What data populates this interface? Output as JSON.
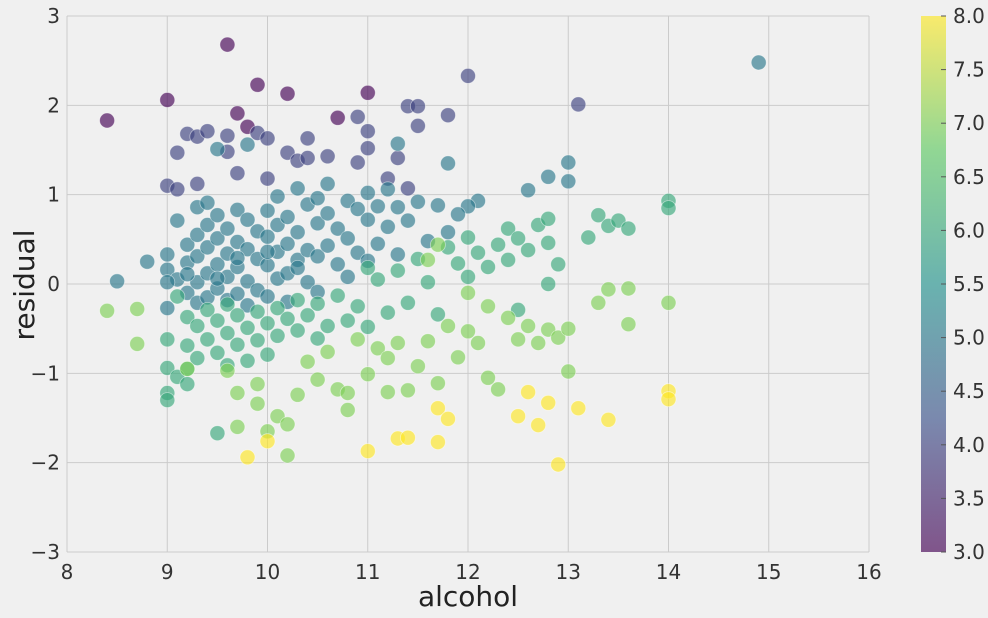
{
  "chart_data": {
    "type": "scatter",
    "title": "",
    "xlabel": "alcohol",
    "ylabel": "residual",
    "xlim": [
      8,
      16
    ],
    "ylim": [
      -3,
      3
    ],
    "xticks": [
      8,
      9,
      10,
      11,
      12,
      13,
      14,
      15,
      16
    ],
    "xtick_labels": [
      "8",
      "9",
      "10",
      "11",
      "12",
      "13",
      "14",
      "15",
      "16"
    ],
    "yticks": [
      -3,
      -2,
      -1,
      0,
      1,
      2,
      3
    ],
    "ytick_labels": [
      "−3",
      "−2",
      "−1",
      "0",
      "1",
      "2",
      "3"
    ],
    "grid": true,
    "colormap": "viridis",
    "color_range": [
      3.0,
      8.0
    ],
    "colorbar_ticks": [
      3.0,
      3.5,
      4.0,
      4.5,
      5.0,
      5.5,
      6.0,
      6.5,
      7.0,
      7.5,
      8.0
    ],
    "colorbar_tick_labels": [
      "3.0",
      "3.5",
      "4.0",
      "4.5",
      "5.0",
      "5.5",
      "6.0",
      "6.5",
      "7.0",
      "7.5",
      "8.0"
    ],
    "point_alpha": 0.65,
    "colors": {
      "background": "#f0f0f0",
      "grid": "#cbcbcb",
      "stops": [
        "#440154",
        "#3b528b",
        "#21918c",
        "#5ec962",
        "#fde725"
      ]
    },
    "points": [
      [
        8.4,
        1.83,
        3
      ],
      [
        9.0,
        2.06,
        3
      ],
      [
        9.6,
        2.68,
        3
      ],
      [
        9.9,
        2.23,
        3
      ],
      [
        10.2,
        2.13,
        3
      ],
      [
        11.0,
        2.14,
        3
      ],
      [
        9.8,
        1.76,
        3
      ],
      [
        9.7,
        1.91,
        3
      ],
      [
        10.7,
        1.86,
        3
      ],
      [
        12.0,
        2.33,
        4
      ],
      [
        13.1,
        2.01,
        4
      ],
      [
        11.4,
        1.99,
        4
      ],
      [
        11.5,
        1.99,
        4
      ],
      [
        11.5,
        1.77,
        4
      ],
      [
        11.8,
        1.89,
        4
      ],
      [
        10.9,
        1.87,
        4
      ],
      [
        11.0,
        1.71,
        4
      ],
      [
        9.2,
        1.68,
        4
      ],
      [
        9.3,
        1.65,
        4
      ],
      [
        9.4,
        1.71,
        4
      ],
      [
        9.6,
        1.66,
        4
      ],
      [
        9.9,
        1.69,
        4
      ],
      [
        10.0,
        1.63,
        4
      ],
      [
        10.4,
        1.63,
        4
      ],
      [
        9.1,
        1.47,
        4
      ],
      [
        9.6,
        1.48,
        4
      ],
      [
        10.2,
        1.47,
        4
      ],
      [
        10.6,
        1.43,
        4
      ],
      [
        11.0,
        1.52,
        4
      ],
      [
        11.3,
        1.41,
        4
      ],
      [
        10.9,
        1.36,
        4
      ],
      [
        9.0,
        1.1,
        4
      ],
      [
        9.1,
        1.06,
        4
      ],
      [
        9.3,
        1.12,
        4
      ],
      [
        9.7,
        1.24,
        4
      ],
      [
        10.0,
        1.18,
        4
      ],
      [
        10.3,
        1.38,
        4
      ],
      [
        10.4,
        1.41,
        4
      ],
      [
        11.4,
        1.07,
        4
      ],
      [
        11.2,
        1.18,
        4
      ],
      [
        14.9,
        2.48,
        5
      ],
      [
        9.5,
        1.51,
        5
      ],
      [
        9.8,
        1.56,
        5
      ],
      [
        11.3,
        1.57,
        5
      ],
      [
        12.6,
        1.05,
        5
      ],
      [
        13.0,
        1.36,
        5
      ],
      [
        12.8,
        1.2,
        5
      ],
      [
        13.0,
        1.15,
        5
      ],
      [
        11.8,
        1.35,
        5
      ],
      [
        12.1,
        0.93,
        5
      ],
      [
        12.0,
        0.87,
        5
      ],
      [
        11.9,
        0.78,
        5
      ],
      [
        8.5,
        0.03,
        5
      ],
      [
        8.8,
        0.25,
        5
      ],
      [
        9.0,
        0.33,
        5
      ],
      [
        9.0,
        0.16,
        5
      ],
      [
        9.0,
        -0.27,
        5
      ],
      [
        9.1,
        0.05,
        5
      ],
      [
        9.1,
        0.71,
        5
      ],
      [
        9.2,
        0.44,
        5
      ],
      [
        9.2,
        0.24,
        5
      ],
      [
        9.2,
        -0.1,
        5
      ],
      [
        9.3,
        0.86,
        5
      ],
      [
        9.3,
        0.55,
        5
      ],
      [
        9.3,
        0.31,
        5
      ],
      [
        9.3,
        0.02,
        5
      ],
      [
        9.3,
        -0.21,
        5
      ],
      [
        9.4,
        0.91,
        5
      ],
      [
        9.4,
        0.66,
        5
      ],
      [
        9.4,
        0.41,
        5
      ],
      [
        9.4,
        0.12,
        5
      ],
      [
        9.4,
        -0.15,
        5
      ],
      [
        9.5,
        0.77,
        5
      ],
      [
        9.5,
        0.51,
        5
      ],
      [
        9.5,
        0.22,
        5
      ],
      [
        9.5,
        -0.05,
        5
      ],
      [
        9.6,
        0.62,
        5
      ],
      [
        9.6,
        0.34,
        5
      ],
      [
        9.6,
        0.08,
        5
      ],
      [
        9.6,
        -0.18,
        5
      ],
      [
        9.7,
        0.83,
        5
      ],
      [
        9.7,
        0.47,
        5
      ],
      [
        9.7,
        0.19,
        5
      ],
      [
        9.7,
        -0.11,
        5
      ],
      [
        9.8,
        0.72,
        5
      ],
      [
        9.8,
        0.39,
        5
      ],
      [
        9.8,
        0.03,
        5
      ],
      [
        9.8,
        -0.24,
        5
      ],
      [
        9.9,
        0.59,
        5
      ],
      [
        9.9,
        0.28,
        5
      ],
      [
        9.9,
        -0.07,
        5
      ],
      [
        10.0,
        0.82,
        5
      ],
      [
        10.0,
        0.53,
        5
      ],
      [
        10.0,
        0.21,
        5
      ],
      [
        10.0,
        -0.14,
        5
      ],
      [
        10.1,
        0.98,
        5
      ],
      [
        10.1,
        0.66,
        5
      ],
      [
        10.1,
        0.36,
        5
      ],
      [
        10.1,
        0.06,
        5
      ],
      [
        10.2,
        0.75,
        5
      ],
      [
        10.2,
        0.45,
        5
      ],
      [
        10.2,
        0.12,
        5
      ],
      [
        10.2,
        -0.2,
        5
      ],
      [
        10.3,
        1.07,
        5
      ],
      [
        10.3,
        0.58,
        5
      ],
      [
        10.3,
        0.27,
        5
      ],
      [
        10.4,
        0.89,
        5
      ],
      [
        10.4,
        0.38,
        5
      ],
      [
        10.4,
        0.02,
        5
      ],
      [
        10.5,
        0.96,
        5
      ],
      [
        10.5,
        0.68,
        5
      ],
      [
        10.5,
        0.31,
        5
      ],
      [
        10.5,
        -0.09,
        5
      ],
      [
        10.6,
        1.12,
        5
      ],
      [
        10.6,
        0.79,
        5
      ],
      [
        10.6,
        0.43,
        5
      ],
      [
        10.7,
        0.62,
        5
      ],
      [
        10.7,
        0.22,
        5
      ],
      [
        10.8,
        0.93,
        5
      ],
      [
        10.8,
        0.51,
        5
      ],
      [
        10.8,
        0.08,
        5
      ],
      [
        10.9,
        0.84,
        5
      ],
      [
        10.9,
        0.35,
        5
      ],
      [
        11.0,
        1.02,
        5
      ],
      [
        11.0,
        0.72,
        5
      ],
      [
        11.0,
        0.26,
        5
      ],
      [
        11.1,
        0.87,
        5
      ],
      [
        11.1,
        0.45,
        5
      ],
      [
        11.2,
        1.06,
        5
      ],
      [
        11.2,
        0.64,
        5
      ],
      [
        11.3,
        0.86,
        5
      ],
      [
        11.3,
        0.33,
        5
      ],
      [
        11.4,
        0.71,
        5
      ],
      [
        11.5,
        0.92,
        5
      ],
      [
        11.6,
        0.48,
        5
      ],
      [
        11.7,
        0.88,
        5
      ],
      [
        11.8,
        0.58,
        5
      ],
      [
        9.0,
        0.02,
        5
      ],
      [
        9.2,
        0.11,
        5
      ],
      [
        9.5,
        0.06,
        5
      ],
      [
        9.7,
        0.29,
        5
      ],
      [
        10.0,
        0.36,
        5
      ],
      [
        10.3,
        0.18,
        5
      ],
      [
        9.1,
        -0.14,
        6
      ],
      [
        9.2,
        -0.37,
        6
      ],
      [
        9.2,
        -0.69,
        6
      ],
      [
        9.2,
        -0.95,
        6
      ],
      [
        9.3,
        -0.47,
        6
      ],
      [
        9.3,
        -0.83,
        6
      ],
      [
        9.4,
        -0.29,
        6
      ],
      [
        9.4,
        -0.62,
        6
      ],
      [
        9.5,
        -0.41,
        6
      ],
      [
        9.5,
        -0.77,
        6
      ],
      [
        9.6,
        -0.23,
        6
      ],
      [
        9.6,
        -0.55,
        6
      ],
      [
        9.6,
        -0.91,
        6
      ],
      [
        9.7,
        -0.35,
        6
      ],
      [
        9.7,
        -0.68,
        6
      ],
      [
        9.8,
        -0.49,
        6
      ],
      [
        9.8,
        -0.86,
        6
      ],
      [
        9.9,
        -0.31,
        6
      ],
      [
        9.9,
        -0.63,
        6
      ],
      [
        10.0,
        -0.44,
        6
      ],
      [
        10.0,
        -0.79,
        6
      ],
      [
        10.1,
        -0.27,
        6
      ],
      [
        10.1,
        -0.58,
        6
      ],
      [
        10.2,
        -0.39,
        6
      ],
      [
        10.3,
        -0.52,
        6
      ],
      [
        10.3,
        -0.18,
        6
      ],
      [
        10.4,
        -0.35,
        6
      ],
      [
        10.5,
        -0.61,
        6
      ],
      [
        10.5,
        -0.22,
        6
      ],
      [
        10.6,
        -0.47,
        6
      ],
      [
        10.7,
        -0.13,
        6
      ],
      [
        10.8,
        -0.41,
        6
      ],
      [
        10.9,
        -0.25,
        6
      ],
      [
        11.0,
        -0.48,
        6
      ],
      [
        11.0,
        0.18,
        6
      ],
      [
        11.1,
        0.05,
        6
      ],
      [
        11.2,
        -0.32,
        6
      ],
      [
        11.3,
        0.15,
        6
      ],
      [
        11.4,
        -0.21,
        6
      ],
      [
        11.5,
        0.28,
        6
      ],
      [
        11.6,
        0.02,
        6
      ],
      [
        11.7,
        -0.34,
        6
      ],
      [
        11.8,
        0.41,
        6
      ],
      [
        11.9,
        0.23,
        6
      ],
      [
        12.0,
        0.52,
        6
      ],
      [
        12.0,
        0.08,
        6
      ],
      [
        12.1,
        0.35,
        6
      ],
      [
        12.2,
        0.19,
        6
      ],
      [
        12.3,
        0.44,
        6
      ],
      [
        12.4,
        0.62,
        6
      ],
      [
        12.4,
        0.27,
        6
      ],
      [
        12.5,
        0.51,
        6
      ],
      [
        12.5,
        -0.29,
        6
      ],
      [
        12.6,
        0.38,
        6
      ],
      [
        12.7,
        0.66,
        6
      ],
      [
        12.8,
        0.73,
        6
      ],
      [
        12.8,
        0.46,
        6
      ],
      [
        12.9,
        0.22,
        6
      ],
      [
        13.2,
        0.52,
        6
      ],
      [
        13.3,
        0.77,
        6
      ],
      [
        13.4,
        0.65,
        6
      ],
      [
        13.5,
        0.71,
        6
      ],
      [
        13.6,
        0.62,
        6
      ],
      [
        14.0,
        0.93,
        6
      ],
      [
        14.0,
        0.85,
        6
      ],
      [
        9.0,
        -0.62,
        6
      ],
      [
        9.0,
        -0.94,
        6
      ],
      [
        9.0,
        -1.22,
        6
      ],
      [
        9.0,
        -1.3,
        6
      ],
      [
        9.1,
        -1.04,
        6
      ],
      [
        9.2,
        -1.12,
        6
      ],
      [
        9.5,
        -1.67,
        6
      ],
      [
        12.8,
        0.0,
        6
      ],
      [
        9.2,
        -0.95,
        7
      ],
      [
        9.6,
        -0.97,
        7
      ],
      [
        9.7,
        -1.22,
        7
      ],
      [
        9.7,
        -1.6,
        7
      ],
      [
        9.9,
        -1.12,
        7
      ],
      [
        9.9,
        -1.34,
        7
      ],
      [
        10.0,
        -1.65,
        7
      ],
      [
        10.1,
        -1.48,
        7
      ],
      [
        10.2,
        -1.92,
        7
      ],
      [
        10.2,
        -1.57,
        7
      ],
      [
        10.3,
        -1.24,
        7
      ],
      [
        10.4,
        -0.87,
        7
      ],
      [
        10.5,
        -1.07,
        7
      ],
      [
        10.6,
        -0.76,
        7
      ],
      [
        10.7,
        -1.18,
        7
      ],
      [
        10.8,
        -1.41,
        7
      ],
      [
        10.8,
        -1.22,
        7
      ],
      [
        10.9,
        -0.62,
        7
      ],
      [
        11.0,
        -1.01,
        7
      ],
      [
        11.1,
        -0.72,
        7
      ],
      [
        11.2,
        -1.21,
        7
      ],
      [
        11.2,
        -0.83,
        7
      ],
      [
        11.3,
        -0.66,
        7
      ],
      [
        11.4,
        -1.19,
        7
      ],
      [
        11.5,
        -0.92,
        7
      ],
      [
        11.6,
        -0.64,
        7
      ],
      [
        11.7,
        -1.11,
        7
      ],
      [
        11.8,
        -0.47,
        7
      ],
      [
        11.9,
        -0.82,
        7
      ],
      [
        12.0,
        -0.53,
        7
      ],
      [
        12.1,
        -0.66,
        7
      ],
      [
        12.2,
        -1.05,
        7
      ],
      [
        12.3,
        -1.18,
        7
      ],
      [
        12.4,
        -0.38,
        7
      ],
      [
        12.5,
        -0.62,
        7
      ],
      [
        12.6,
        -0.47,
        7
      ],
      [
        12.7,
        -0.66,
        7
      ],
      [
        12.8,
        -0.51,
        7
      ],
      [
        12.9,
        -0.6,
        7
      ],
      [
        13.0,
        -0.5,
        7
      ],
      [
        13.0,
        -0.98,
        7
      ],
      [
        13.3,
        -0.21,
        7
      ],
      [
        13.4,
        -0.06,
        7
      ],
      [
        13.6,
        -0.05,
        7
      ],
      [
        13.6,
        -0.45,
        7
      ],
      [
        14.0,
        -0.21,
        7
      ],
      [
        8.4,
        -0.3,
        7
      ],
      [
        8.7,
        -0.28,
        7
      ],
      [
        8.7,
        -0.67,
        7
      ],
      [
        12.0,
        -0.1,
        7
      ],
      [
        12.2,
        -0.25,
        7
      ],
      [
        11.7,
        0.44,
        7
      ],
      [
        11.6,
        0.27,
        7
      ],
      [
        9.8,
        -1.94,
        8
      ],
      [
        11.0,
        -1.87,
        8
      ],
      [
        11.3,
        -1.73,
        8
      ],
      [
        11.4,
        -1.72,
        8
      ],
      [
        11.7,
        -1.77,
        8
      ],
      [
        11.7,
        -1.39,
        8
      ],
      [
        11.8,
        -1.51,
        8
      ],
      [
        12.5,
        -1.48,
        8
      ],
      [
        12.6,
        -1.21,
        8
      ],
      [
        12.7,
        -1.58,
        8
      ],
      [
        12.8,
        -1.33,
        8
      ],
      [
        12.9,
        -2.02,
        8
      ],
      [
        13.1,
        -1.39,
        8
      ],
      [
        13.4,
        -1.52,
        8
      ],
      [
        14.0,
        -1.2,
        8
      ],
      [
        14.0,
        -1.29,
        8
      ],
      [
        10.0,
        -1.76,
        8
      ]
    ]
  }
}
